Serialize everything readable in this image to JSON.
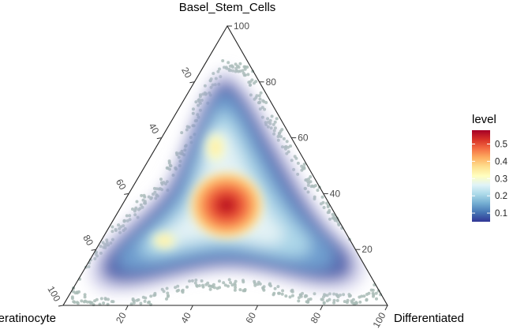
{
  "chart_data": {
    "type": "ternary-density",
    "vertices": {
      "top": "Basel_Stem_Cells",
      "left": "Keratinocyte",
      "right": "Differentiated"
    },
    "axis_ticks": {
      "left_edge": [
        "20",
        "40",
        "60",
        "80",
        "100"
      ],
      "right_edge": [
        "20",
        "40",
        "60",
        "80",
        "100"
      ],
      "bottom_edge": [
        "20",
        "40",
        "60",
        "80",
        "100"
      ]
    },
    "scatter_color": "#a9bcb6",
    "density_peaks": [
      {
        "stem": 0.38,
        "diff": 0.38,
        "level": 0.58
      },
      {
        "stem": 0.66,
        "diff": 0.17,
        "level": 0.3
      },
      {
        "stem": 0.25,
        "diff": 0.15,
        "level": 0.3
      }
    ],
    "legend": {
      "title": "level",
      "ticks": [
        "0.1",
        "0.2",
        "0.3",
        "0.4",
        "0.5"
      ],
      "tick_values": [
        0.1,
        0.2,
        0.3,
        0.4,
        0.5
      ],
      "range": [
        0.05,
        0.58
      ],
      "colors": [
        "#313695",
        "#4575b4",
        "#74add1",
        "#abd9e9",
        "#e0f3f8",
        "#ffffbf",
        "#fee090",
        "#fdae61",
        "#f46d43",
        "#d73027",
        "#a50026"
      ]
    }
  }
}
